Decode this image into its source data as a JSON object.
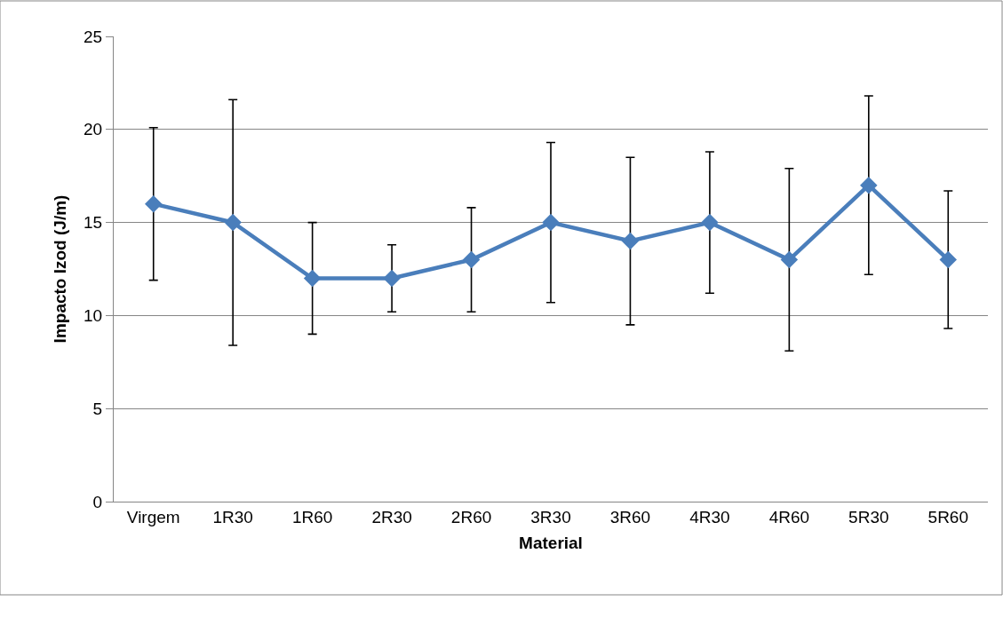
{
  "chart_data": {
    "type": "line",
    "xlabel": "Material",
    "ylabel": "Impacto Izod (J/m)",
    "categories": [
      "Virgem",
      "1R30",
      "1R60",
      "2R30",
      "2R60",
      "3R30",
      "3R60",
      "4R30",
      "4R60",
      "5R30",
      "5R60"
    ],
    "series": [
      {
        "color": "#4a7ebb",
        "values": [
          16,
          15,
          12,
          12,
          13,
          15,
          14,
          15,
          13,
          17,
          13
        ],
        "errors": [
          4.1,
          6.6,
          3,
          1.8,
          2.8,
          4.3,
          4.5,
          3.8,
          4.9,
          4.8,
          3.7
        ]
      }
    ],
    "ylim": [
      0,
      25
    ],
    "yticks": [
      0,
      5,
      10,
      15,
      20,
      25
    ],
    "grid": "y",
    "marker": "diamond",
    "line_style": "solid"
  }
}
